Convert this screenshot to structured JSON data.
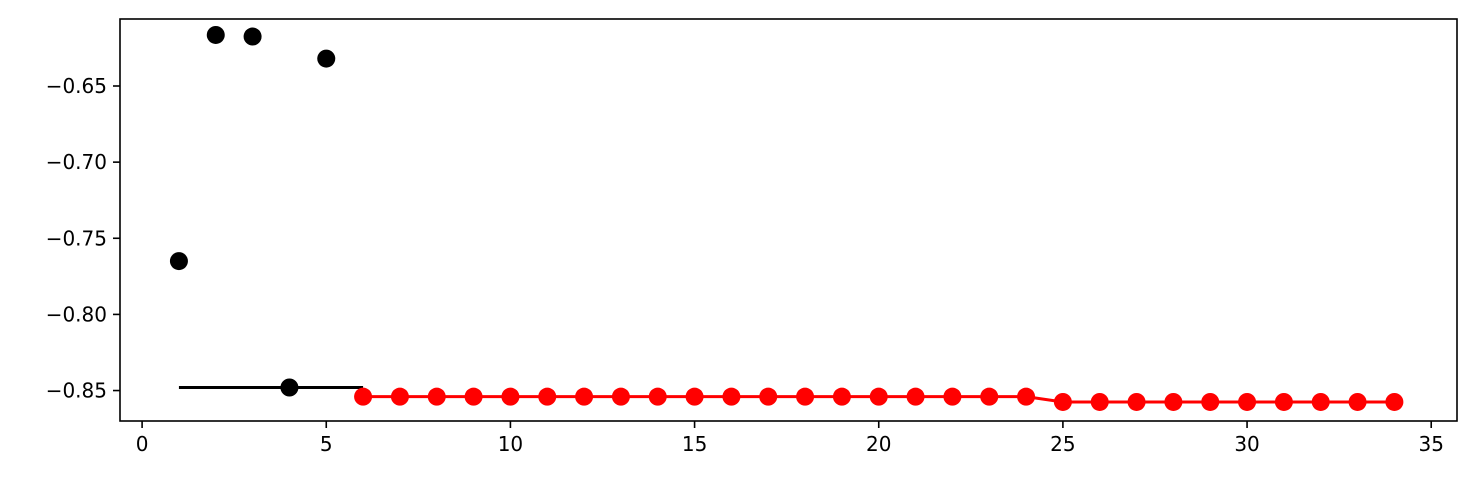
{
  "chart_data": {
    "type": "scatter",
    "title": "",
    "xlabel": "",
    "ylabel": "",
    "xlim": [
      -0.6,
      35.7
    ],
    "ylim": [
      -0.87,
      -0.606
    ],
    "grid": false,
    "legend": "none",
    "xticks": [
      0,
      5,
      10,
      15,
      20,
      25,
      30,
      35
    ],
    "xtick_labels": [
      "0",
      "5",
      "10",
      "15",
      "20",
      "25",
      "30",
      "35"
    ],
    "yticks": [
      -0.65,
      -0.7,
      -0.75,
      -0.8,
      -0.85
    ],
    "ytick_labels": [
      "−0.65",
      "−0.70",
      "−0.75",
      "−0.80",
      "−0.85"
    ],
    "series": [
      {
        "kind": "points",
        "color": "#000000",
        "x": [
          1,
          2,
          3,
          4,
          5
        ],
        "y": [
          -0.765,
          -0.6165,
          -0.6175,
          -0.848,
          -0.632
        ]
      },
      {
        "kind": "step-line",
        "color": "#000000",
        "x": [
          1,
          6
        ],
        "y": [
          -0.848,
          -0.848
        ]
      },
      {
        "kind": "line-points",
        "color": "#ff0000",
        "x": [
          6,
          7,
          8,
          9,
          10,
          11,
          12,
          13,
          14,
          15,
          16,
          17,
          18,
          19,
          20,
          21,
          22,
          23,
          24,
          25,
          26,
          27,
          28,
          29,
          30,
          31,
          32,
          33,
          34
        ],
        "y": [
          -0.854,
          -0.854,
          -0.854,
          -0.854,
          -0.854,
          -0.854,
          -0.854,
          -0.854,
          -0.854,
          -0.854,
          -0.854,
          -0.854,
          -0.854,
          -0.854,
          -0.854,
          -0.854,
          -0.854,
          -0.854,
          -0.854,
          -0.8575,
          -0.8575,
          -0.8575,
          -0.8575,
          -0.8575,
          -0.8575,
          -0.8575,
          -0.8575,
          -0.8575,
          -0.8575
        ]
      }
    ]
  }
}
